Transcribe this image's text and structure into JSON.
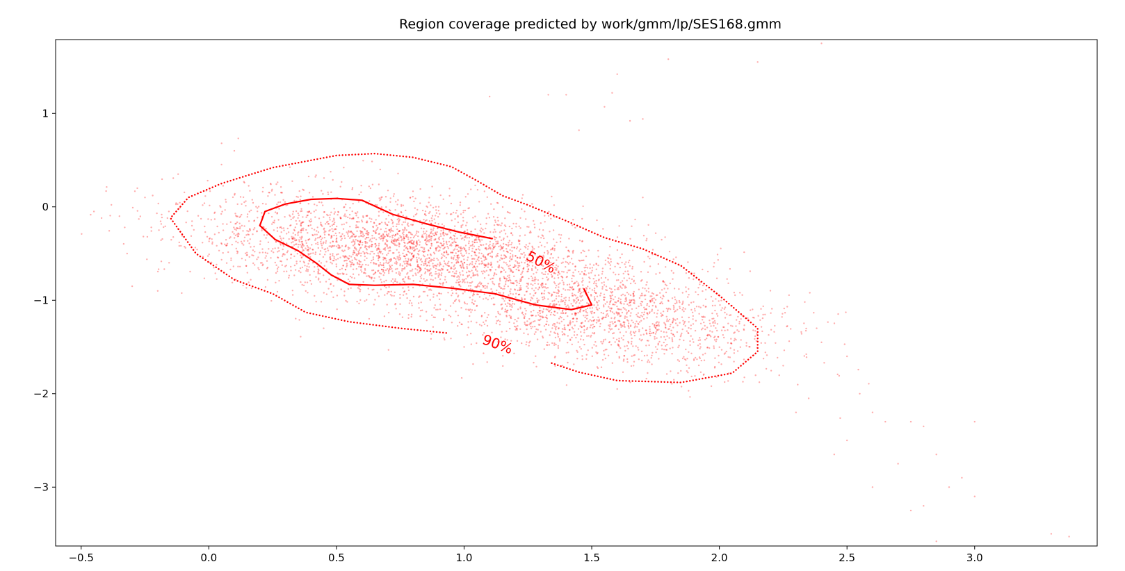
{
  "chart_data": {
    "type": "scatter",
    "title": "Region coverage predicted by work/gmm/lp/SES168.gmm",
    "xlabel": "",
    "ylabel": "",
    "xlim": [
      -0.6,
      3.48
    ],
    "ylim": [
      -3.63,
      1.79
    ],
    "x_ticks": [
      -0.5,
      0.0,
      0.5,
      1.0,
      1.5,
      2.0,
      2.5,
      3.0
    ],
    "x_tick_labels": [
      "−0.5",
      "0.0",
      "0.5",
      "1.0",
      "1.5",
      "2.0",
      "2.5",
      "3.0"
    ],
    "y_ticks": [
      1,
      0,
      -1,
      -2,
      -3
    ],
    "y_tick_labels": [
      "1",
      "0",
      "−1",
      "−2",
      "−3"
    ],
    "grid": false,
    "legend": "none",
    "point_color": "#ff0000",
    "contour_color": "#ff0000",
    "scatter_model": {
      "description_of_sampling": "bimodal gaussian mixture cloud",
      "n_points": 4500,
      "components": [
        {
          "weight": 0.62,
          "mean": [
            0.75,
            -0.45
          ],
          "sd_major": 0.42,
          "sd_minor": 0.26,
          "angle_deg": -22
        },
        {
          "weight": 0.38,
          "mean": [
            1.55,
            -1.15
          ],
          "sd_major": 0.38,
          "sd_minor": 0.24,
          "angle_deg": -32
        }
      ],
      "outliers": [
        [
          2.4,
          1.75
        ],
        [
          1.8,
          1.58
        ],
        [
          2.15,
          1.55
        ],
        [
          1.6,
          1.42
        ],
        [
          1.4,
          1.2
        ],
        [
          1.58,
          1.22
        ],
        [
          1.33,
          1.2
        ],
        [
          1.55,
          1.07
        ],
        [
          1.65,
          0.92
        ],
        [
          1.7,
          0.94
        ],
        [
          1.45,
          0.82
        ],
        [
          1.1,
          1.18
        ],
        [
          2.25,
          -1.7
        ],
        [
          2.4,
          -1.45
        ],
        [
          2.5,
          -1.6
        ],
        [
          2.55,
          -2.0
        ],
        [
          2.6,
          -2.2
        ],
        [
          2.65,
          -2.3
        ],
        [
          2.75,
          -2.3
        ],
        [
          2.8,
          -2.35
        ],
        [
          2.85,
          -2.65
        ],
        [
          2.7,
          -2.75
        ],
        [
          2.95,
          -2.9
        ],
        [
          3.0,
          -2.3
        ],
        [
          3.0,
          -3.1
        ],
        [
          2.9,
          -3.0
        ],
        [
          2.8,
          -3.2
        ],
        [
          2.75,
          -3.25
        ],
        [
          3.3,
          -3.5
        ],
        [
          3.37,
          -3.53
        ],
        [
          2.85,
          -3.58
        ],
        [
          2.6,
          -3.0
        ],
        [
          2.5,
          -2.5
        ],
        [
          2.45,
          -2.65
        ],
        [
          2.3,
          -2.2
        ],
        [
          2.35,
          -2.05
        ],
        [
          -0.45,
          -0.05
        ],
        [
          -0.42,
          -0.12
        ],
        [
          -0.35,
          -0.1
        ],
        [
          -0.32,
          -0.5
        ],
        [
          -0.3,
          -0.85
        ],
        [
          -0.28,
          0.2
        ],
        [
          -0.25,
          0.1
        ],
        [
          -0.2,
          -0.9
        ],
        [
          -0.12,
          0.35
        ],
        [
          0.05,
          0.68
        ],
        [
          0.1,
          0.6
        ],
        [
          0.45,
          -1.3
        ],
        [
          1.0,
          -1.5
        ],
        [
          1.1,
          -1.45
        ],
        [
          1.6,
          -1.95
        ],
        [
          1.7,
          0.1
        ]
      ]
    },
    "contours": [
      {
        "label": "50%",
        "style": "solid",
        "label_position": [
          1.3,
          -0.6
        ],
        "label_angle_deg": 28,
        "path": [
          [
            1.11,
            -0.34
          ],
          [
            0.98,
            -0.27
          ],
          [
            0.85,
            -0.18
          ],
          [
            0.72,
            -0.08
          ],
          [
            0.6,
            0.07
          ],
          [
            0.5,
            0.09
          ],
          [
            0.4,
            0.08
          ],
          [
            0.3,
            0.03
          ],
          [
            0.22,
            -0.05
          ],
          [
            0.2,
            -0.2
          ],
          [
            0.26,
            -0.35
          ],
          [
            0.35,
            -0.47
          ],
          [
            0.42,
            -0.6
          ],
          [
            0.48,
            -0.73
          ],
          [
            0.55,
            -0.83
          ],
          [
            0.65,
            -0.84
          ],
          [
            0.8,
            -0.83
          ],
          [
            0.95,
            -0.87
          ],
          [
            1.12,
            -0.93
          ],
          [
            1.28,
            -1.05
          ],
          [
            1.42,
            -1.1
          ],
          [
            1.5,
            -1.05
          ],
          [
            1.47,
            -0.88
          ]
        ]
      },
      {
        "label": "90%",
        "style": "dotted",
        "label_position": [
          1.13,
          -1.48
        ],
        "label_angle_deg": 20,
        "path": [
          [
            0.93,
            -1.35
          ],
          [
            0.75,
            -1.3
          ],
          [
            0.55,
            -1.23
          ],
          [
            0.38,
            -1.13
          ],
          [
            0.25,
            -0.93
          ],
          [
            0.1,
            -0.78
          ],
          [
            -0.05,
            -0.5
          ],
          [
            -0.15,
            -0.12
          ],
          [
            -0.08,
            0.1
          ],
          [
            0.05,
            0.25
          ],
          [
            0.25,
            0.42
          ],
          [
            0.5,
            0.55
          ],
          [
            0.65,
            0.57
          ],
          [
            0.8,
            0.53
          ],
          [
            0.95,
            0.43
          ],
          [
            1.05,
            0.28
          ],
          [
            1.15,
            0.12
          ],
          [
            1.25,
            0.02
          ],
          [
            1.4,
            -0.15
          ],
          [
            1.55,
            -0.33
          ],
          [
            1.7,
            -0.45
          ],
          [
            1.85,
            -0.63
          ],
          [
            2.0,
            -0.95
          ],
          [
            2.15,
            -1.3
          ],
          [
            2.15,
            -1.55
          ],
          [
            2.05,
            -1.78
          ],
          [
            1.85,
            -1.88
          ],
          [
            1.6,
            -1.86
          ],
          [
            1.45,
            -1.77
          ],
          [
            1.34,
            -1.67
          ]
        ]
      }
    ]
  }
}
